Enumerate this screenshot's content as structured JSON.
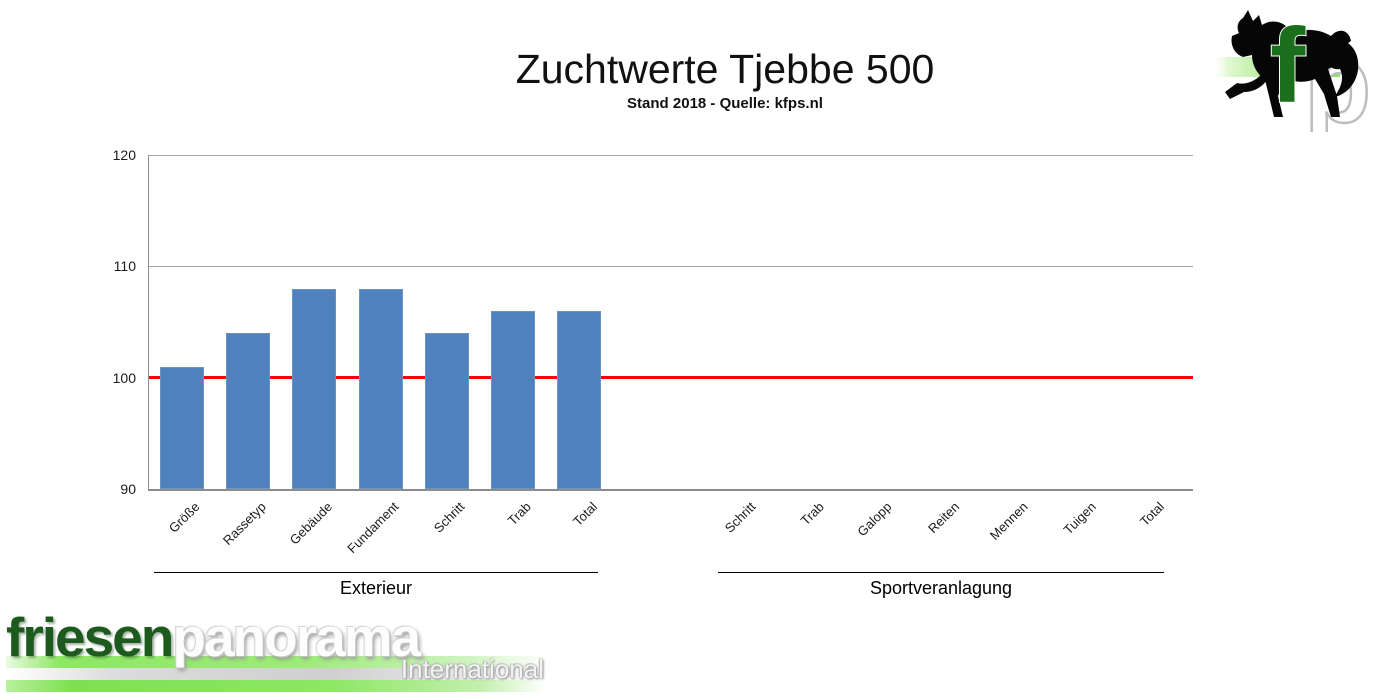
{
  "header": {
    "title": "Zuchtwerte Tjebbe 500",
    "subtitle": "Stand 2018 - Quelle: kfps.nl"
  },
  "brand": {
    "part_green": "friesen",
    "part_white": "panorama",
    "tagline": "International"
  },
  "fp_logo": {
    "letter_f": "f",
    "letter_p": "p",
    "icon": "friesian-horse-icon"
  },
  "colors": {
    "bar": "#4F81BD",
    "reference_line": "#FE0000",
    "gridline": "#A6A6A6",
    "axis": "#8C8C8C",
    "brand_green": "#1D5A1D",
    "band_green": "#8CE763"
  },
  "chart_data": {
    "type": "bar",
    "title": "Zuchtwerte Tjebbe 500",
    "subtitle": "Stand 2018 - Quelle: kfps.nl",
    "ylabel": "",
    "xlabel": "",
    "ylim": [
      90,
      120
    ],
    "yticks": [
      90,
      100,
      110,
      120
    ],
    "reference_line": 100,
    "grid": true,
    "legend": false,
    "groups": [
      {
        "label": "Exterieur",
        "categories": [
          "Größe",
          "Rassetyp",
          "Gebäude",
          "Fundament",
          "Schritt",
          "Trab",
          "Total"
        ],
        "values": [
          101,
          104,
          108,
          108,
          104,
          106,
          106
        ]
      },
      {
        "label": "Sportveranlagung",
        "categories": [
          "Schritt",
          "Trab",
          "Galopp",
          "Reiten",
          "Mennen",
          "Tuigen",
          "Total"
        ],
        "values": [
          null,
          null,
          null,
          null,
          null,
          null,
          null
        ]
      }
    ]
  }
}
